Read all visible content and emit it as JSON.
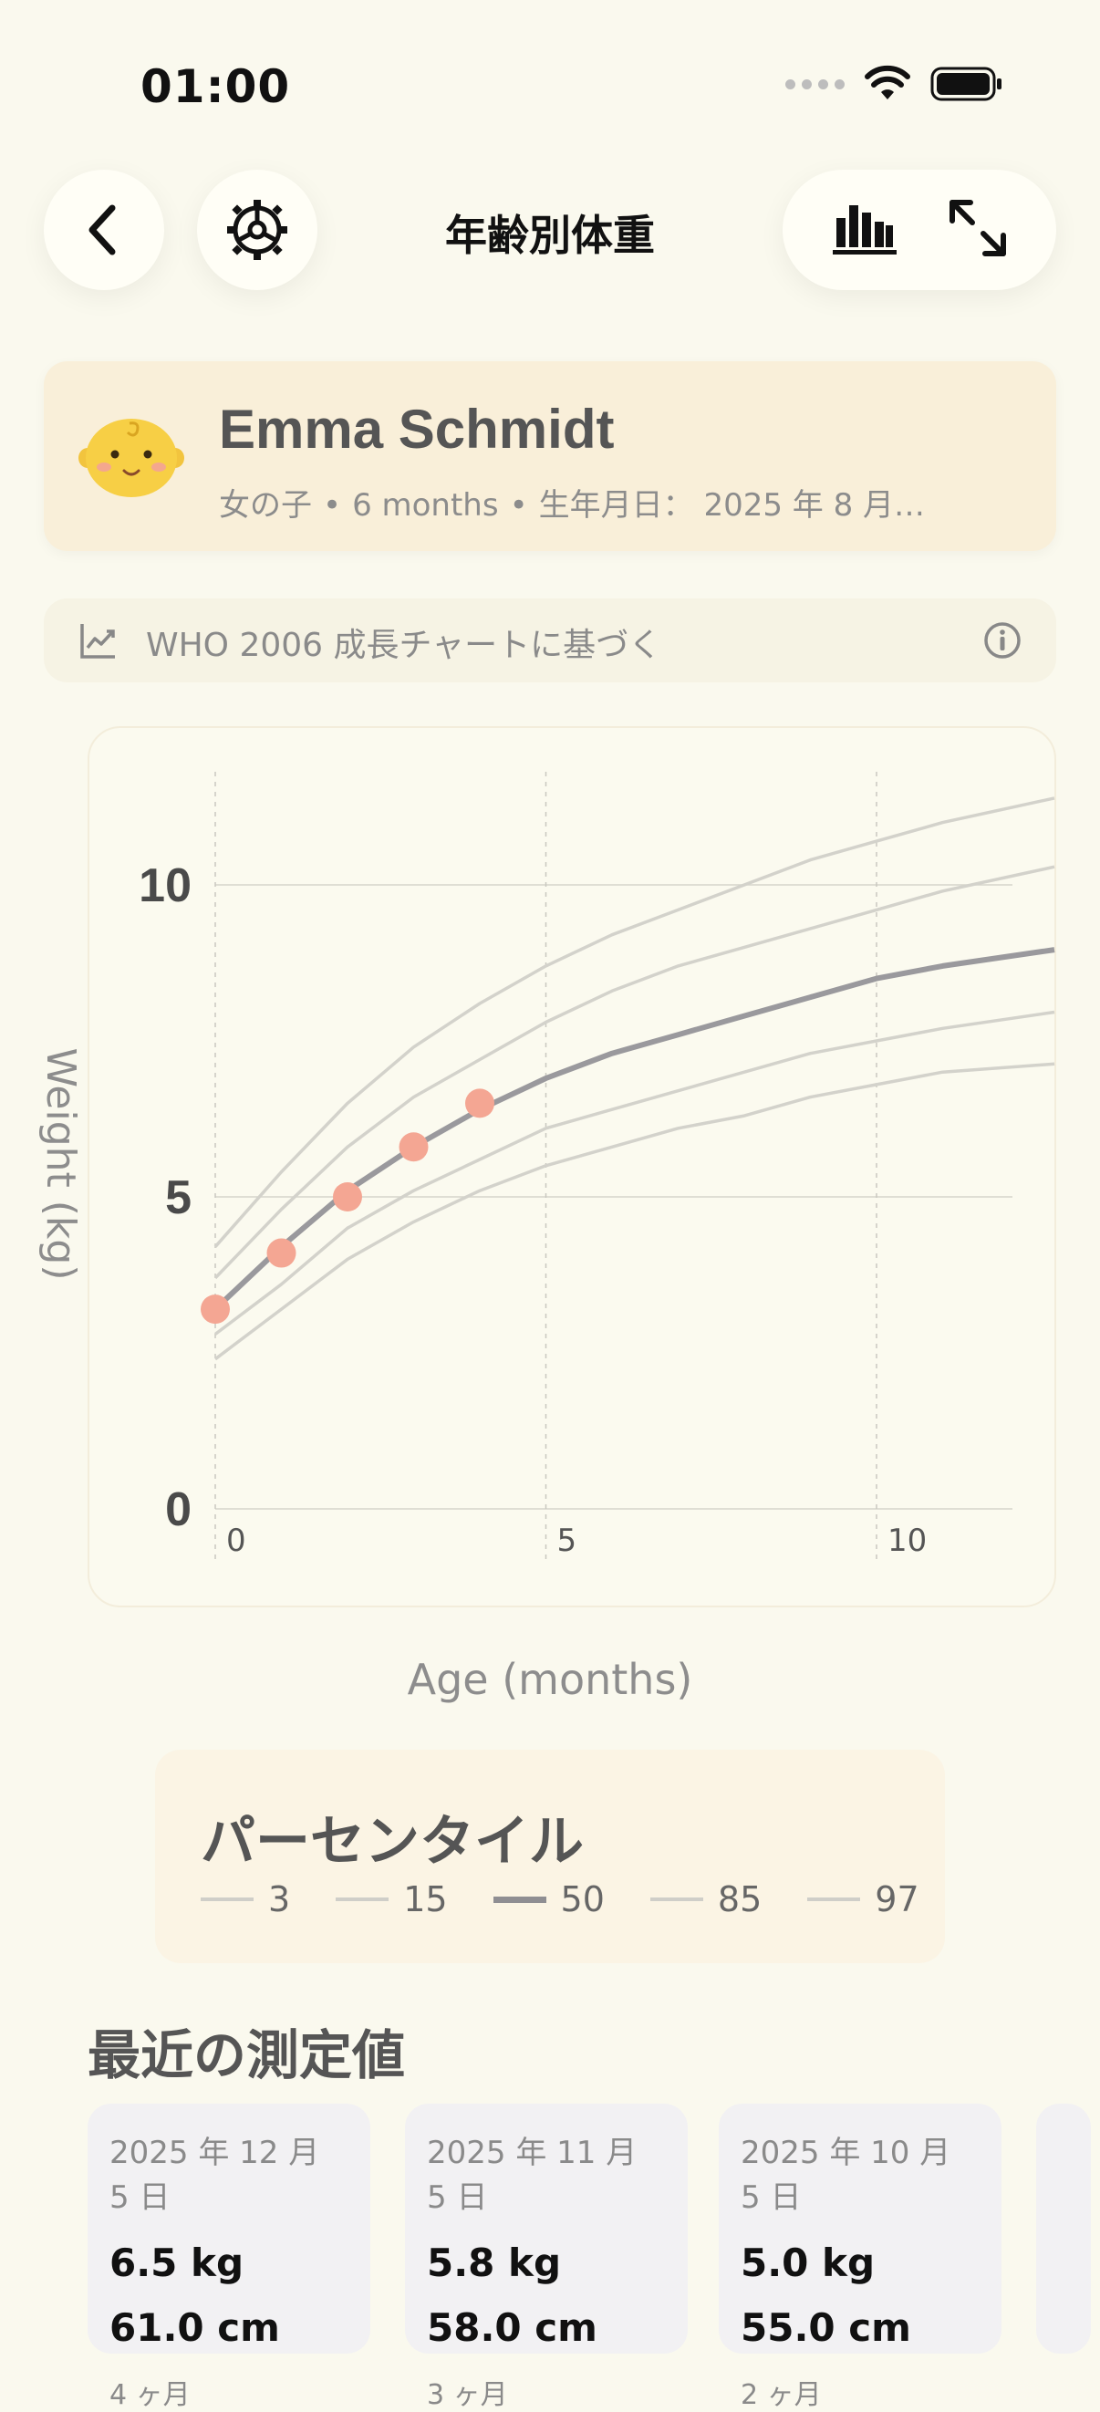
{
  "status_bar": {
    "time": "01:00"
  },
  "nav": {
    "title": "年齢別体重",
    "back_icon": "chevron-left-icon",
    "settings_icon": "gear-icon",
    "chart_icon": "bar-chart-icon",
    "expand_icon": "expand-icon"
  },
  "profile": {
    "name": "Emma Schmidt",
    "sex": "女の子",
    "age": "6 months",
    "dob": "生年月日： 2025 年 8 月…",
    "avatar_icon": "baby-face-icon"
  },
  "who_banner": {
    "text": "WHO 2006 成長チャートに基づく",
    "icon": "trend-chart-icon",
    "info_icon": "info-icon"
  },
  "chart_data": {
    "type": "line",
    "title": "",
    "xlabel": "Age (months)",
    "ylabel": "Weight (kg)",
    "xlim": [
      0,
      12
    ],
    "ylim": [
      0,
      12
    ],
    "x_ticks": [
      "0",
      "5",
      "10"
    ],
    "y_ticks": [
      "0",
      "5",
      "10"
    ],
    "percentile_x": [
      0,
      1,
      2,
      3,
      4,
      5,
      6,
      7,
      8,
      9,
      10,
      11,
      12
    ],
    "series": [
      {
        "name": "3",
        "values": [
          2.4,
          3.2,
          4.0,
          4.6,
          5.1,
          5.5,
          5.8,
          6.1,
          6.3,
          6.6,
          6.8,
          7.0,
          7.1
        ]
      },
      {
        "name": "15",
        "values": [
          2.8,
          3.6,
          4.5,
          5.1,
          5.6,
          6.1,
          6.4,
          6.7,
          7.0,
          7.3,
          7.5,
          7.7,
          7.9
        ]
      },
      {
        "name": "50",
        "values": [
          3.2,
          4.2,
          5.1,
          5.8,
          6.4,
          6.9,
          7.3,
          7.6,
          7.9,
          8.2,
          8.5,
          8.7,
          8.9
        ]
      },
      {
        "name": "85",
        "values": [
          3.7,
          4.8,
          5.8,
          6.6,
          7.2,
          7.8,
          8.3,
          8.7,
          9.0,
          9.3,
          9.6,
          9.9,
          10.2
        ]
      },
      {
        "name": "97",
        "values": [
          4.2,
          5.4,
          6.5,
          7.4,
          8.1,
          8.7,
          9.2,
          9.6,
          10.0,
          10.4,
          10.7,
          11.0,
          11.3
        ]
      }
    ],
    "measurements": {
      "x": [
        0,
        1,
        2,
        3,
        4
      ],
      "y": [
        3.2,
        4.1,
        5.0,
        5.8,
        6.5
      ]
    },
    "colors": {
      "percentile": "#D3D2CB",
      "median": "#9A999D",
      "point": "#F4A693",
      "grid": "#D6D5CC"
    }
  },
  "legend": {
    "title": "パーセンタイル",
    "items": [
      {
        "label": "3"
      },
      {
        "label": "15"
      },
      {
        "label": "50"
      },
      {
        "label": "85"
      },
      {
        "label": "97"
      }
    ]
  },
  "recent": {
    "title": "最近の測定値",
    "items": [
      {
        "date": "2025 年 12 月 5 日",
        "weight": "6.5 kg",
        "height": "61.0 cm",
        "age": "4 ヶ月"
      },
      {
        "date": "2025 年 11 月 5 日",
        "weight": "5.8 kg",
        "height": "58.0 cm",
        "age": "3 ヶ月"
      },
      {
        "date": "2025 年 10 月 5 日",
        "weight": "5.0 kg",
        "height": "55.0 cm",
        "age": "2 ヶ月"
      }
    ]
  }
}
